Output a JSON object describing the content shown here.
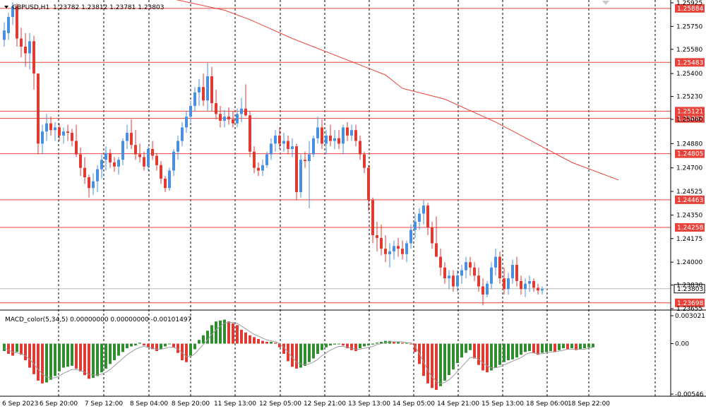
{
  "header": {
    "symbol": "GBPUSD,H1",
    "ohlc": "1.23782 1.23812 1.23781 1.23803",
    "indicator": "MACD_color(5,34,5) 0.00000000 0.00000000 -0.00101497"
  },
  "colors": {
    "background": "#ffffff",
    "axis_text": "#000000",
    "bull_candle": "#4a8fe0",
    "bear_candle": "#e03a32",
    "level_line": "#e8433a",
    "ma_line": "#e8433a",
    "grid": "#000000",
    "macd_up": "#2f8f2f",
    "macd_down": "#e03a32",
    "signal": "#9a9a9a",
    "price_label_bg": "#e8433a",
    "price_label_text": "#ffffff",
    "current_label_bg": "#ffffff"
  },
  "price_axis": {
    "ticks": [
      "1.25925",
      "1.25750",
      "1.25580",
      "1.25400",
      "1.25230",
      "1.25060",
      "1.24880",
      "1.24700",
      "1.24525",
      "1.24350",
      "1.24175",
      "1.24000",
      "1.23830",
      "1.23655"
    ],
    "level_labels": [
      "1.25884",
      "1.25483",
      "1.25121",
      "1.25067",
      "1.24805",
      "1.24463",
      "1.24258",
      "1.23698"
    ],
    "current_label": "1.23803"
  },
  "macd_axis": {
    "ticks": [
      "0.00302112",
      "0.00",
      "-0.00546"
    ]
  },
  "time_axis": {
    "labels": [
      "6 Sep 2023",
      "6 Sep 20:00",
      "7 Sep 12:00",
      "8 Sep 04:00",
      "8 Sep 20:00",
      "11 Sep 13:00",
      "12 Sep 05:00",
      "12 Sep 21:00",
      "13 Sep 13:00",
      "14 Sep 05:00",
      "14 Sep 21:00",
      "15 Sep 13:00",
      "18 Sep 06:00",
      "18 Sep 22:00"
    ]
  },
  "chart_data": {
    "type": "candlestick",
    "symbol": "GBPUSD",
    "timeframe": "H1",
    "price_range": [
      1.23655,
      1.25925
    ],
    "horizontal_levels": [
      1.25884,
      1.25483,
      1.25121,
      1.25067,
      1.24805,
      1.24463,
      1.24258,
      1.23698
    ],
    "current_price": 1.23803,
    "moving_average": [
      {
        "t": 36,
        "v": 1.2598
      },
      {
        "t": 52,
        "v": 1.2587
      },
      {
        "t": 58,
        "v": 1.258
      },
      {
        "t": 68,
        "v": 1.2566
      },
      {
        "t": 90,
        "v": 1.2539
      },
      {
        "t": 94,
        "v": 1.2529
      },
      {
        "t": 104,
        "v": 1.2521
      },
      {
        "t": 116,
        "v": 1.2504
      },
      {
        "t": 134,
        "v": 1.2474
      },
      {
        "t": 145,
        "v": 1.2461
      }
    ],
    "candles": [
      [
        1.2565,
        1.2578,
        1.256,
        1.2572
      ],
      [
        1.257,
        1.2585,
        1.2565,
        1.2582
      ],
      [
        1.2582,
        1.2593,
        1.2576,
        1.259
      ],
      [
        1.259,
        1.2592,
        1.256,
        1.2566
      ],
      [
        1.2566,
        1.2574,
        1.2552,
        1.256
      ],
      [
        1.256,
        1.257,
        1.2545,
        1.2555
      ],
      [
        1.2555,
        1.257,
        1.2543,
        1.2564
      ],
      [
        1.2564,
        1.2568,
        1.2528,
        1.254
      ],
      [
        1.254,
        1.254,
        1.248,
        1.2488
      ],
      [
        1.2488,
        1.2502,
        1.248,
        1.2497
      ],
      [
        1.2497,
        1.251,
        1.249,
        1.2503
      ],
      [
        1.2503,
        1.2508,
        1.2494,
        1.2498
      ],
      [
        1.2498,
        1.2504,
        1.249,
        1.25
      ],
      [
        1.25,
        1.2503,
        1.249,
        1.2494
      ],
      [
        1.2494,
        1.25,
        1.2488,
        1.2497
      ],
      [
        1.2497,
        1.2502,
        1.249,
        1.2496
      ],
      [
        1.2496,
        1.2499,
        1.2486,
        1.249
      ],
      [
        1.249,
        1.2502,
        1.2478,
        1.248
      ],
      [
        1.248,
        1.2485,
        1.2464,
        1.247
      ],
      [
        1.247,
        1.2478,
        1.2458,
        1.2463
      ],
      [
        1.2463,
        1.2465,
        1.2448,
        1.2455
      ],
      [
        1.2455,
        1.2466,
        1.245,
        1.246
      ],
      [
        1.246,
        1.2472,
        1.2452,
        1.2469
      ],
      [
        1.2469,
        1.248,
        1.2462,
        1.2476
      ],
      [
        1.2476,
        1.2486,
        1.2468,
        1.2481
      ],
      [
        1.2481,
        1.2484,
        1.247,
        1.2474
      ],
      [
        1.2474,
        1.2478,
        1.2467,
        1.2471
      ],
      [
        1.2471,
        1.2478,
        1.2465,
        1.2476
      ],
      [
        1.2476,
        1.2492,
        1.2472,
        1.249
      ],
      [
        1.249,
        1.2502,
        1.2484,
        1.2496
      ],
      [
        1.2496,
        1.2506,
        1.2484,
        1.2487
      ],
      [
        1.2487,
        1.2498,
        1.2476,
        1.248
      ],
      [
        1.248,
        1.2488,
        1.2474,
        1.2478
      ],
      [
        1.2478,
        1.2482,
        1.2468,
        1.2471
      ],
      [
        1.2471,
        1.2486,
        1.2468,
        1.2484
      ],
      [
        1.2484,
        1.249,
        1.2476,
        1.2479
      ],
      [
        1.2479,
        1.2481,
        1.2468,
        1.2472
      ],
      [
        1.2472,
        1.2475,
        1.2458,
        1.2462
      ],
      [
        1.2462,
        1.2464,
        1.2452,
        1.2455
      ],
      [
        1.2455,
        1.247,
        1.2453,
        1.2468
      ],
      [
        1.2468,
        1.2484,
        1.2464,
        1.2482
      ],
      [
        1.2482,
        1.2494,
        1.2476,
        1.249
      ],
      [
        1.249,
        1.2504,
        1.2486,
        1.25
      ],
      [
        1.25,
        1.2512,
        1.2496,
        1.2508
      ],
      [
        1.2508,
        1.252,
        1.2504,
        1.2516
      ],
      [
        1.2516,
        1.253,
        1.2512,
        1.2526
      ],
      [
        1.2526,
        1.2536,
        1.2516,
        1.253
      ],
      [
        1.253,
        1.254,
        1.2516,
        1.252
      ],
      [
        1.252,
        1.2548,
        1.2512,
        1.2538
      ],
      [
        1.2538,
        1.2545,
        1.2512,
        1.2518
      ],
      [
        1.2518,
        1.2528,
        1.2506,
        1.251
      ],
      [
        1.251,
        1.2516,
        1.25,
        1.2505
      ],
      [
        1.2505,
        1.2513,
        1.25,
        1.2508
      ],
      [
        1.2508,
        1.2515,
        1.2502,
        1.2506
      ],
      [
        1.2506,
        1.2512,
        1.25,
        1.2503
      ],
      [
        1.2503,
        1.2514,
        1.25,
        1.251
      ],
      [
        1.251,
        1.2522,
        1.2504,
        1.2514
      ],
      [
        1.2514,
        1.2532,
        1.2508,
        1.2509
      ],
      [
        1.2509,
        1.2512,
        1.2478,
        1.2482
      ],
      [
        1.2482,
        1.2486,
        1.2466,
        1.247
      ],
      [
        1.247,
        1.2474,
        1.2464,
        1.2468
      ],
      [
        1.2468,
        1.2476,
        1.2464,
        1.2472
      ],
      [
        1.2472,
        1.2482,
        1.247,
        1.248
      ],
      [
        1.248,
        1.2492,
        1.2476,
        1.2488
      ],
      [
        1.2488,
        1.2498,
        1.2482,
        1.2494
      ],
      [
        1.2494,
        1.25,
        1.2484,
        1.2488
      ],
      [
        1.2488,
        1.2496,
        1.2482,
        1.249
      ],
      [
        1.249,
        1.2494,
        1.248,
        1.2484
      ],
      [
        1.2484,
        1.2492,
        1.2478,
        1.2486
      ],
      [
        1.2486,
        1.2488,
        1.2446,
        1.2452
      ],
      [
        1.2452,
        1.248,
        1.2448,
        1.2476
      ],
      [
        1.2476,
        1.2482,
        1.247,
        1.2475
      ],
      [
        1.2475,
        1.249,
        1.244,
        1.248
      ],
      [
        1.248,
        1.2494,
        1.2478,
        1.2492
      ],
      [
        1.2492,
        1.2508,
        1.2488,
        1.25
      ],
      [
        1.25,
        1.2506,
        1.2484,
        1.2488
      ],
      [
        1.2488,
        1.2498,
        1.248,
        1.2494
      ],
      [
        1.2494,
        1.2502,
        1.2486,
        1.249
      ],
      [
        1.249,
        1.2498,
        1.2484,
        1.2492
      ],
      [
        1.2492,
        1.2498,
        1.2484,
        1.2488
      ],
      [
        1.2488,
        1.2502,
        1.248,
        1.25
      ],
      [
        1.25,
        1.2504,
        1.249,
        1.2494
      ],
      [
        1.2494,
        1.2502,
        1.249,
        1.2498
      ],
      [
        1.2498,
        1.2502,
        1.2486,
        1.249
      ],
      [
        1.249,
        1.2494,
        1.2476,
        1.248
      ],
      [
        1.248,
        1.2482,
        1.2466,
        1.247
      ],
      [
        1.247,
        1.2472,
        1.2438,
        1.2446
      ],
      [
        1.2446,
        1.2448,
        1.2414,
        1.242
      ],
      [
        1.242,
        1.243,
        1.2408,
        1.2418
      ],
      [
        1.2418,
        1.2428,
        1.2405,
        1.241
      ],
      [
        1.241,
        1.242,
        1.24,
        1.2406
      ],
      [
        1.2406,
        1.2414,
        1.2396,
        1.2408
      ],
      [
        1.2408,
        1.2416,
        1.2402,
        1.2412
      ],
      [
        1.2412,
        1.2418,
        1.2404,
        1.241
      ],
      [
        1.241,
        1.2416,
        1.2402,
        1.2406
      ],
      [
        1.2406,
        1.2416,
        1.24,
        1.2414
      ],
      [
        1.2414,
        1.2428,
        1.241,
        1.2424
      ],
      [
        1.2424,
        1.2436,
        1.2418,
        1.243
      ],
      [
        1.243,
        1.244,
        1.2424,
        1.2436
      ],
      [
        1.2436,
        1.2446,
        1.2428,
        1.2442
      ],
      [
        1.2442,
        1.2444,
        1.242,
        1.2426
      ],
      [
        1.2426,
        1.243,
        1.241,
        1.2414
      ],
      [
        1.2414,
        1.2434,
        1.2406,
        1.2404
      ],
      [
        1.2404,
        1.241,
        1.239,
        1.2396
      ],
      [
        1.2396,
        1.24,
        1.2384,
        1.2388
      ],
      [
        1.2388,
        1.2394,
        1.238,
        1.239
      ],
      [
        1.239,
        1.2394,
        1.2378,
        1.2382
      ],
      [
        1.2382,
        1.2394,
        1.2378,
        1.239
      ],
      [
        1.239,
        1.2398,
        1.2384,
        1.2394
      ],
      [
        1.2394,
        1.2404,
        1.2388,
        1.24
      ],
      [
        1.24,
        1.2404,
        1.239,
        1.2396
      ],
      [
        1.2396,
        1.24,
        1.2386,
        1.239
      ],
      [
        1.239,
        1.2396,
        1.2378,
        1.2382
      ],
      [
        1.2382,
        1.2388,
        1.2368,
        1.2376
      ],
      [
        1.2376,
        1.2386,
        1.2374,
        1.2384
      ],
      [
        1.2384,
        1.24,
        1.238,
        1.2396
      ],
      [
        1.2396,
        1.241,
        1.239,
        1.2404
      ],
      [
        1.2404,
        1.2408,
        1.2384,
        1.2388
      ],
      [
        1.2388,
        1.2396,
        1.2376,
        1.238
      ],
      [
        1.238,
        1.2392,
        1.2376,
        1.2388
      ],
      [
        1.2388,
        1.2402,
        1.2384,
        1.2398
      ],
      [
        1.2398,
        1.2404,
        1.2382,
        1.2386
      ],
      [
        1.2386,
        1.239,
        1.2376,
        1.238
      ],
      [
        1.238,
        1.2388,
        1.2374,
        1.2384
      ],
      [
        1.2384,
        1.239,
        1.2378,
        1.2386
      ],
      [
        1.2386,
        1.2388,
        1.2378,
        1.2381
      ],
      [
        1.2381,
        1.2384,
        1.2376,
        1.2379
      ],
      [
        1.2379,
        1.2382,
        1.2376,
        1.238
      ]
    ],
    "macd_range": [
      -0.00546,
      0.00302112
    ],
    "macd_histogram": [
      -0.0008,
      -0.0011,
      -0.0013,
      -0.0009,
      -0.0012,
      -0.0018,
      -0.0026,
      -0.0033,
      -0.004,
      -0.0043,
      -0.0042,
      -0.0039,
      -0.0035,
      -0.003,
      -0.0026,
      -0.0025,
      -0.0024,
      -0.0027,
      -0.003,
      -0.0034,
      -0.0038,
      -0.0037,
      -0.0035,
      -0.0031,
      -0.0027,
      -0.0022,
      -0.0018,
      -0.0013,
      -0.0009,
      -0.0005,
      -0.0003,
      -0.0002,
      0.0001,
      -0.0002,
      -0.0004,
      -0.0006,
      -0.0008,
      -0.0006,
      -0.0003,
      0.0,
      -0.0004,
      -0.001,
      -0.0018,
      -0.002,
      -0.0013,
      -0.0006,
      0.0004,
      0.0009,
      0.0014,
      0.002,
      0.0024,
      0.0025,
      0.0026,
      0.0024,
      0.0022,
      0.002,
      0.0015,
      0.0012,
      0.0009,
      0.0007,
      0.0005,
      0.0003,
      0.0002,
      0.0002,
      0.0001,
      -0.0004,
      -0.0011,
      -0.0019,
      -0.0025,
      -0.0027,
      -0.0026,
      -0.0024,
      -0.002,
      -0.0016,
      -0.0011,
      -0.0007,
      -0.0004,
      -0.0002,
      -0.0001,
      0.0,
      -0.0002,
      -0.0005,
      -0.0007,
      -0.0008,
      -0.0005,
      -0.0003,
      -0.0002,
      -0.0001,
      0.0001,
      0.0002,
      0.0003,
      0.0003,
      0.0002,
      0.0002,
      0.0001,
      0.0001,
      0.0,
      -0.0009,
      -0.0022,
      -0.0035,
      -0.0043,
      -0.0048,
      -0.005,
      -0.0046,
      -0.004,
      -0.0034,
      -0.0028,
      -0.0021,
      -0.0015,
      -0.001,
      -0.0007,
      -0.0016,
      -0.0023,
      -0.0029,
      -0.0031,
      -0.0029,
      -0.0026,
      -0.0023,
      -0.002,
      -0.0018,
      -0.0017,
      -0.0015,
      -0.0012,
      -0.0009,
      -0.0008,
      -0.001,
      -0.0012,
      -0.001,
      -0.0009,
      -0.0008,
      -0.0009,
      -0.0007,
      -0.0005,
      -0.0006,
      -0.0005,
      -0.0007,
      -0.0006,
      -0.0005,
      -0.0004,
      -0.0004
    ],
    "macd_signal": [
      -0.0005,
      -0.0007,
      -0.0009,
      -0.001,
      -0.0011,
      -0.0013,
      -0.0017,
      -0.0022,
      -0.0028,
      -0.0033,
      -0.0036,
      -0.0037,
      -0.0037,
      -0.0035,
      -0.0032,
      -0.003,
      -0.0028,
      -0.0028,
      -0.0029,
      -0.0031,
      -0.0033,
      -0.0034,
      -0.0034,
      -0.0033,
      -0.0031,
      -0.0028,
      -0.0024,
      -0.002,
      -0.0016,
      -0.0012,
      -0.0009,
      -0.0006,
      -0.0004,
      -0.0003,
      -0.0004,
      -0.0005,
      -0.0006,
      -0.0006,
      -0.0005,
      -0.0004,
      -0.0004,
      -0.0006,
      -0.001,
      -0.0014,
      -0.0014,
      -0.0011,
      -0.0006,
      -0.0001,
      0.0004,
      0.001,
      0.0015,
      0.0019,
      0.0022,
      0.0023,
      0.0023,
      0.0022,
      0.0019,
      0.0016,
      0.0013,
      0.001,
      0.0008,
      0.0006,
      0.0004,
      0.0003,
      0.0002,
      0.0,
      -0.0004,
      -0.0009,
      -0.0015,
      -0.002,
      -0.0022,
      -0.0023,
      -0.0022,
      -0.002,
      -0.0017,
      -0.0013,
      -0.001,
      -0.0007,
      -0.0005,
      -0.0003,
      -0.0003,
      -0.0004,
      -0.0005,
      -0.0006,
      -0.0006,
      -0.0005,
      -0.0004,
      -0.0003,
      -0.0001,
      0.0,
      0.0001,
      0.0002,
      0.0002,
      0.0002,
      0.0002,
      0.0001,
      0.0001,
      -0.0003,
      -0.0011,
      -0.002,
      -0.0029,
      -0.0036,
      -0.0041,
      -0.0043,
      -0.0042,
      -0.0039,
      -0.0035,
      -0.003,
      -0.0025,
      -0.002,
      -0.0015,
      -0.0015,
      -0.0017,
      -0.0021,
      -0.0024,
      -0.0026,
      -0.0026,
      -0.0025,
      -0.0023,
      -0.0021,
      -0.0019,
      -0.0017,
      -0.0015,
      -0.0012,
      -0.001,
      -0.001,
      -0.0011,
      -0.0011,
      -0.001,
      -0.0009,
      -0.0009,
      -0.0008,
      -0.0007,
      -0.0006,
      -0.0006,
      -0.0006,
      -0.0006,
      -0.0006,
      -0.0005,
      -0.0004
    ]
  }
}
